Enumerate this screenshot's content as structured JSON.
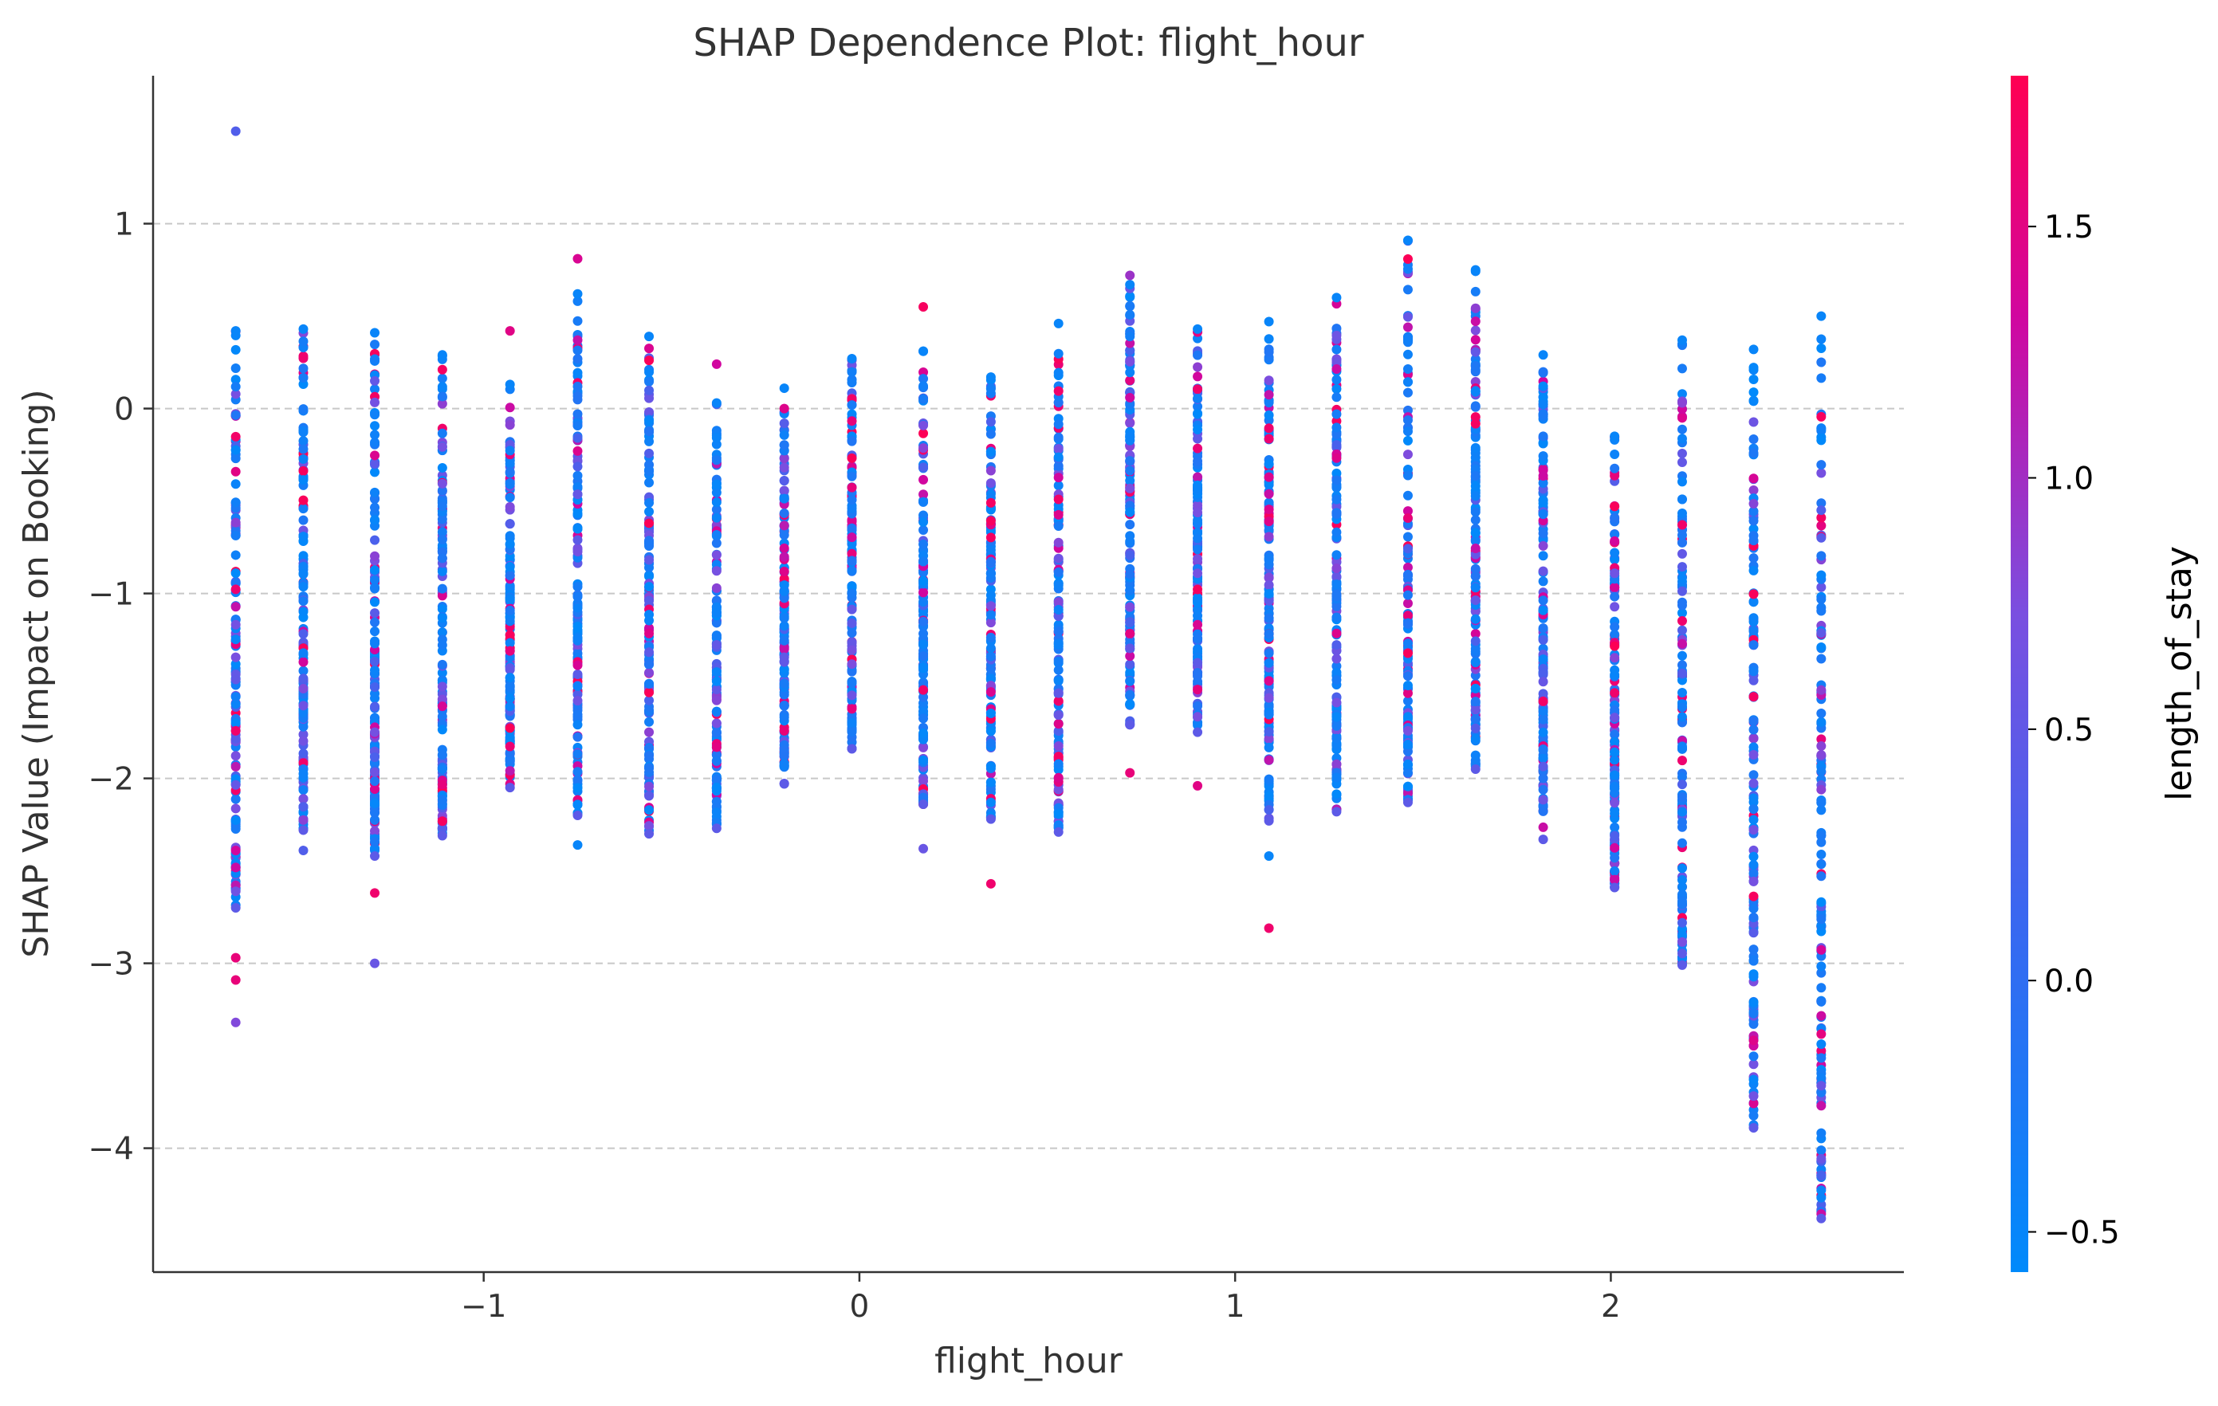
{
  "chart_data": {
    "type": "scatter",
    "title": "SHAP Dependence Plot: flight_hour",
    "xlabel": "flight_hour",
    "ylabel": "SHAP Value (Impact on Booking)",
    "xlim": [
      -1.88,
      2.78
    ],
    "ylim": [
      -4.67,
      1.8
    ],
    "x_ticks": [
      -1,
      0,
      1,
      2
    ],
    "x_tick_labels": [
      "−1",
      "0",
      "1",
      "2"
    ],
    "y_ticks": [
      1,
      0,
      -1,
      -2,
      -3,
      -4
    ],
    "y_tick_labels": [
      "1",
      "0",
      "−1",
      "−2",
      "−3",
      "−4"
    ],
    "grid": "horizontal dashed",
    "colorbar": {
      "label": "length_of_stay",
      "range": [
        -0.58,
        1.8
      ],
      "ticks": [
        1.5,
        1.0,
        0.5,
        0.0,
        -0.5
      ],
      "tick_labels": [
        "1.5",
        "1.0",
        "0.5",
        "0.0",
        "−0.5"
      ],
      "colors": [
        "#008afb",
        "#7a4fe0",
        "#d1069f",
        "#ff0052"
      ]
    },
    "columns": [
      {
        "x": -1.66,
        "ymin": -2.7,
        "ymax": 0.42,
        "outliers": [
          [
            1.5,
            0.2
          ],
          [
            -2.97,
            1.5
          ],
          [
            -3.09,
            1.5
          ],
          [
            -3.32,
            0.6
          ]
        ]
      },
      {
        "x": -1.48,
        "ymin": -2.28,
        "ymax": 0.43,
        "outliers": [
          [
            -2.39,
            0.2
          ]
        ]
      },
      {
        "x": -1.29,
        "ymin": -2.42,
        "ymax": 0.41,
        "outliers": [
          [
            -2.62,
            1.6
          ],
          [
            -3.0,
            0.4
          ]
        ]
      },
      {
        "x": -1.11,
        "ymin": -2.31,
        "ymax": 0.29,
        "outliers": []
      },
      {
        "x": -0.93,
        "ymin": -2.05,
        "ymax": 0.13,
        "outliers": [
          [
            0.42,
            1.4
          ]
        ]
      },
      {
        "x": -0.75,
        "ymin": -2.2,
        "ymax": 0.62,
        "outliers": [
          [
            0.81,
            1.3
          ],
          [
            -2.36,
            -0.5
          ]
        ]
      },
      {
        "x": -0.56,
        "ymin": -2.3,
        "ymax": 0.39,
        "outliers": []
      },
      {
        "x": -0.38,
        "ymin": -2.27,
        "ymax": 0.03,
        "outliers": [
          [
            0.24,
            1.2
          ]
        ]
      },
      {
        "x": -0.2,
        "ymin": -2.03,
        "ymax": 0.11,
        "outliers": []
      },
      {
        "x": -0.02,
        "ymin": -1.84,
        "ymax": 0.27,
        "outliers": []
      },
      {
        "x": 0.17,
        "ymin": -2.14,
        "ymax": 0.31,
        "outliers": [
          [
            0.55,
            1.7
          ],
          [
            -2.38,
            0.4
          ]
        ]
      },
      {
        "x": 0.35,
        "ymin": -2.22,
        "ymax": 0.17,
        "outliers": [
          [
            -2.57,
            1.6
          ]
        ]
      },
      {
        "x": 0.53,
        "ymin": -2.29,
        "ymax": 0.46,
        "outliers": []
      },
      {
        "x": 0.72,
        "ymin": -1.71,
        "ymax": 0.67,
        "outliers": [
          [
            0.72,
            0.8
          ],
          [
            -1.97,
            1.5
          ]
        ]
      },
      {
        "x": 0.9,
        "ymin": -1.75,
        "ymax": 0.43,
        "outliers": [
          [
            -2.04,
            1.4
          ]
        ]
      },
      {
        "x": 1.09,
        "ymin": -2.23,
        "ymax": 0.47,
        "outliers": [
          [
            -2.42,
            -0.5
          ],
          [
            -2.81,
            1.6
          ]
        ]
      },
      {
        "x": 1.27,
        "ymin": -2.18,
        "ymax": 0.6,
        "outliers": []
      },
      {
        "x": 1.46,
        "ymin": -2.13,
        "ymax": 0.91,
        "outliers": []
      },
      {
        "x": 1.64,
        "ymin": -1.95,
        "ymax": 0.75,
        "outliers": []
      },
      {
        "x": 1.82,
        "ymin": -2.33,
        "ymax": 0.29,
        "outliers": []
      },
      {
        "x": 2.01,
        "ymin": -2.59,
        "ymax": -0.15,
        "outliers": []
      },
      {
        "x": 2.19,
        "ymin": -3.01,
        "ymax": 0.37,
        "outliers": []
      },
      {
        "x": 2.38,
        "ymin": -3.89,
        "ymax": 0.32,
        "outliers": []
      },
      {
        "x": 2.56,
        "ymin": -4.38,
        "ymax": 0.5,
        "outliers": []
      }
    ]
  }
}
